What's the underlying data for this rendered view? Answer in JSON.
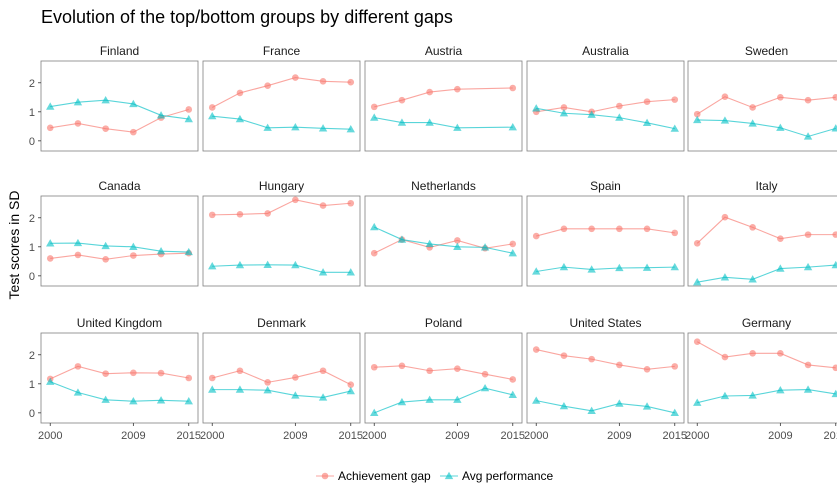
{
  "chart_data": {
    "type": "line",
    "title": "Evolution of the top/bottom groups by different gaps",
    "ylabel": "Test scores in SD",
    "xlabel": "",
    "x_ticks": [
      2000,
      2009,
      2015
    ],
    "y_ticks": [
      0,
      1,
      2
    ],
    "ylim": [
      -0.35,
      2.75
    ],
    "xlim": [
      1999,
      2016
    ],
    "x": [
      2000,
      2003,
      2006,
      2009,
      2012,
      2015
    ],
    "legend_position": "bottom",
    "colors": {
      "Achievement gap": "#F8766D",
      "Avg performance": "#00BFC4"
    },
    "series_names": [
      "Achievement gap",
      "Avg performance"
    ],
    "panels": [
      {
        "country": "Finland",
        "series": [
          {
            "name": "Achievement gap",
            "values": [
              0.45,
              0.6,
              0.42,
              0.3,
              0.8,
              1.08
            ]
          },
          {
            "name": "Avg performance",
            "values": [
              1.18,
              1.33,
              1.4,
              1.27,
              0.88,
              0.75
            ]
          }
        ]
      },
      {
        "country": "France",
        "series": [
          {
            "name": "Achievement gap",
            "values": [
              1.15,
              1.65,
              1.9,
              2.18,
              2.05,
              2.02
            ]
          },
          {
            "name": "Avg performance",
            "values": [
              0.85,
              0.75,
              0.45,
              0.47,
              0.43,
              0.4
            ]
          }
        ]
      },
      {
        "country": "Austria",
        "series": [
          {
            "name": "Achievement gap",
            "values": [
              1.17,
              1.4,
              1.68,
              1.78,
              null,
              1.82
            ]
          },
          {
            "name": "Avg performance",
            "values": [
              0.8,
              0.63,
              0.63,
              0.45,
              null,
              0.47
            ]
          }
        ]
      },
      {
        "country": "Australia",
        "series": [
          {
            "name": "Achievement gap",
            "values": [
              1.0,
              1.15,
              1.0,
              1.2,
              1.35,
              1.42
            ]
          },
          {
            "name": "Avg performance",
            "values": [
              1.12,
              0.95,
              0.9,
              0.8,
              0.62,
              0.42
            ]
          }
        ]
      },
      {
        "country": "Sweden",
        "series": [
          {
            "name": "Achievement gap",
            "values": [
              0.92,
              1.52,
              1.15,
              1.5,
              1.4,
              1.5
            ]
          },
          {
            "name": "Avg performance",
            "values": [
              0.72,
              0.7,
              0.6,
              0.45,
              0.15,
              0.43
            ]
          }
        ]
      },
      {
        "country": "Canada",
        "series": [
          {
            "name": "Achievement gap",
            "values": [
              0.6,
              0.72,
              0.57,
              0.7,
              0.75,
              0.78
            ]
          },
          {
            "name": "Avg performance",
            "values": [
              1.12,
              1.13,
              1.03,
              1.0,
              0.85,
              0.82
            ]
          }
        ]
      },
      {
        "country": "Hungary",
        "series": [
          {
            "name": "Achievement gap",
            "values": [
              2.1,
              2.12,
              2.15,
              2.62,
              2.42,
              2.5
            ]
          },
          {
            "name": "Avg performance",
            "values": [
              0.33,
              0.37,
              0.38,
              0.37,
              0.12,
              0.12
            ]
          }
        ]
      },
      {
        "country": "Netherlands",
        "series": [
          {
            "name": "Achievement gap",
            "values": [
              0.78,
              1.25,
              0.98,
              1.22,
              0.95,
              1.1
            ]
          },
          {
            "name": "Avg performance",
            "values": [
              1.68,
              1.25,
              1.1,
              1.0,
              0.98,
              0.78
            ]
          }
        ]
      },
      {
        "country": "Spain",
        "series": [
          {
            "name": "Achievement gap",
            "values": [
              1.37,
              1.62,
              1.62,
              1.62,
              1.62,
              1.48
            ]
          },
          {
            "name": "Avg performance",
            "values": [
              0.15,
              0.3,
              0.22,
              0.27,
              0.28,
              0.3
            ]
          }
        ]
      },
      {
        "country": "Italy",
        "series": [
          {
            "name": "Achievement gap",
            "values": [
              1.12,
              2.02,
              1.67,
              1.28,
              1.42,
              1.42
            ]
          },
          {
            "name": "Avg performance",
            "values": [
              -0.22,
              -0.05,
              -0.12,
              0.25,
              0.3,
              0.37
            ]
          }
        ]
      },
      {
        "country": "United Kingdom",
        "series": [
          {
            "name": "Achievement gap",
            "values": [
              1.17,
              1.6,
              1.35,
              1.38,
              1.37,
              1.2
            ]
          },
          {
            "name": "Avg performance",
            "values": [
              1.07,
              0.7,
              0.45,
              0.4,
              0.43,
              0.4
            ]
          }
        ]
      },
      {
        "country": "Denmark",
        "series": [
          {
            "name": "Achievement gap",
            "values": [
              1.2,
              1.45,
              1.05,
              1.22,
              1.45,
              0.97
            ]
          },
          {
            "name": "Avg performance",
            "values": [
              0.8,
              0.8,
              0.78,
              0.6,
              0.53,
              0.75
            ]
          }
        ]
      },
      {
        "country": "Poland",
        "series": [
          {
            "name": "Achievement gap",
            "values": [
              1.57,
              1.62,
              1.45,
              1.52,
              1.33,
              1.15
            ]
          },
          {
            "name": "Avg performance",
            "values": [
              0.0,
              0.37,
              0.45,
              0.45,
              0.85,
              0.62
            ]
          }
        ]
      },
      {
        "country": "United States",
        "series": [
          {
            "name": "Achievement gap",
            "values": [
              2.18,
              1.97,
              1.85,
              1.65,
              1.5,
              1.6
            ]
          },
          {
            "name": "Avg performance",
            "values": [
              0.42,
              0.23,
              0.07,
              0.32,
              0.22,
              0.0
            ]
          }
        ]
      },
      {
        "country": "Germany",
        "series": [
          {
            "name": "Achievement gap",
            "values": [
              2.45,
              1.92,
              2.05,
              2.05,
              1.65,
              1.55
            ]
          },
          {
            "name": "Avg performance",
            "values": [
              0.35,
              0.58,
              0.6,
              0.78,
              0.8,
              0.65
            ]
          }
        ]
      }
    ]
  }
}
